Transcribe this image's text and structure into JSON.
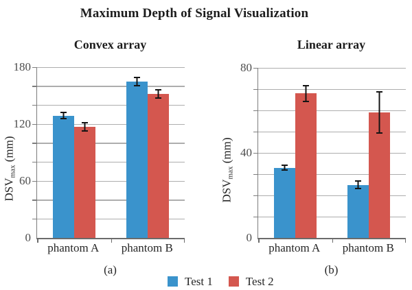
{
  "page_title": "Maximum Depth of Signal Visualization",
  "axis_label": {
    "main": "DSV",
    "sub": "max",
    "unit": " (mm)"
  },
  "legend": {
    "position": "bottom-center",
    "items": [
      {
        "label": "Test 1",
        "color": "#3A93CC"
      },
      {
        "label": "Test 2",
        "color": "#D4574F"
      }
    ]
  },
  "chart_data": [
    {
      "type": "bar",
      "title": "Convex array",
      "panel_label": "(a)",
      "ylabel": "DSV_max (mm)",
      "categories": [
        "phantom A",
        "phantom B"
      ],
      "series": [
        {
          "name": "Test 1",
          "color": "#3A93CC",
          "values": [
            129,
            165
          ],
          "errors": [
            4,
            5
          ]
        },
        {
          "name": "Test 2",
          "color": "#D4574F",
          "values": [
            117,
            152
          ],
          "errors": [
            5,
            5
          ]
        }
      ],
      "ylim": [
        0,
        180
      ],
      "yticks": [
        0,
        60,
        120,
        180
      ],
      "grid_step": 20,
      "grid": true
    },
    {
      "type": "bar",
      "title": "Linear array",
      "panel_label": "(b)",
      "ylabel": "DSV_max (mm)",
      "categories": [
        "phantom A",
        "phantom B"
      ],
      "series": [
        {
          "name": "Test 1",
          "color": "#3A93CC",
          "values": [
            33,
            25
          ],
          "errors": [
            1.5,
            2
          ]
        },
        {
          "name": "Test 2",
          "color": "#D4574F",
          "values": [
            68,
            59
          ],
          "errors": [
            4,
            10
          ]
        }
      ],
      "ylim": [
        0,
        80
      ],
      "yticks": [
        0,
        40,
        80
      ],
      "grid_step": 10,
      "grid": true
    }
  ]
}
